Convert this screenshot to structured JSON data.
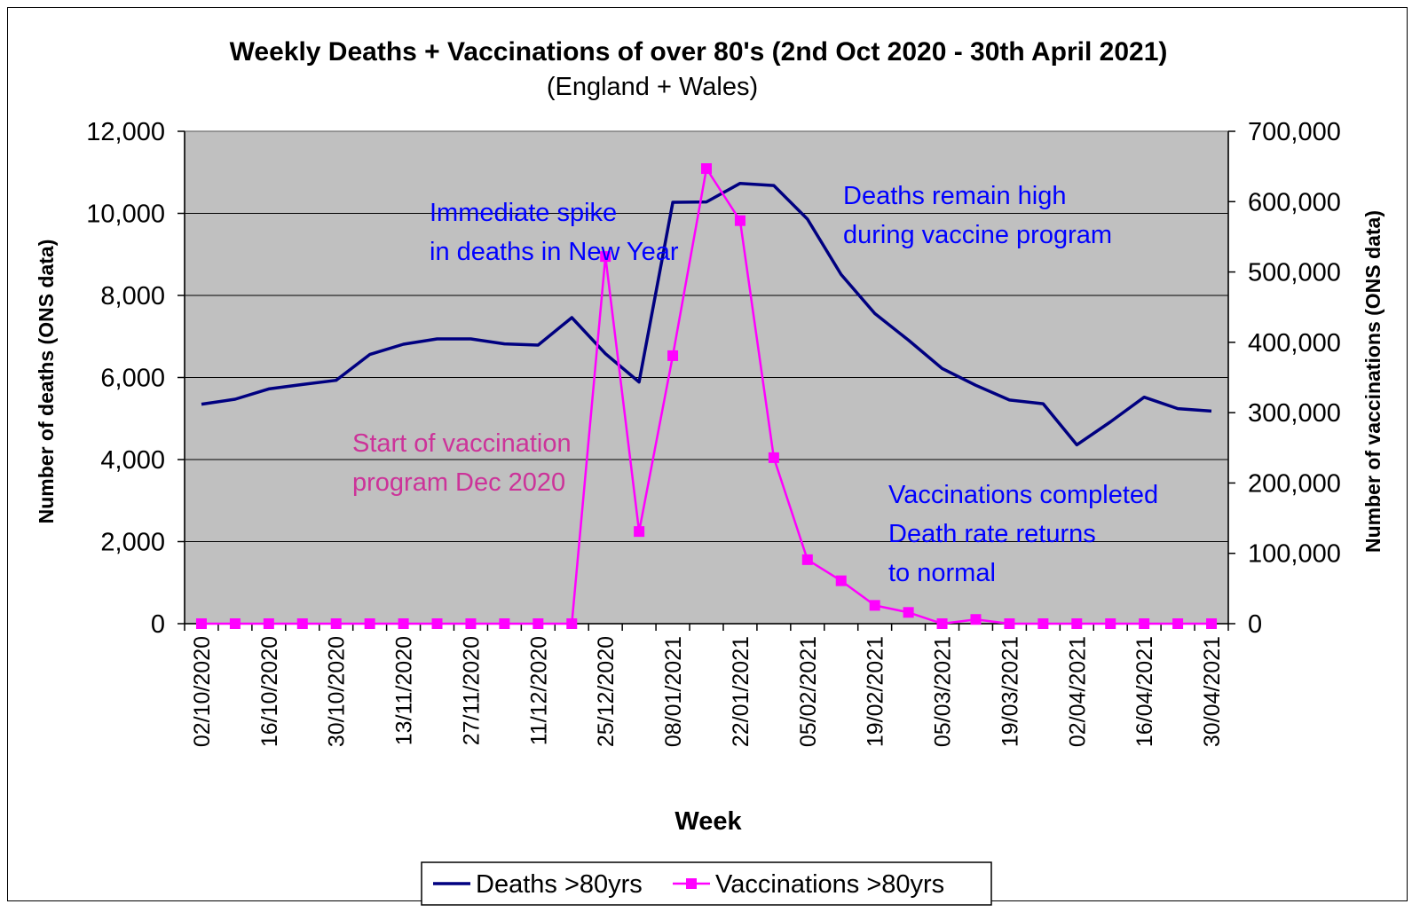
{
  "chart_data": {
    "type": "line",
    "title": "Weekly Deaths + Vaccinations of over 80's (2nd Oct 2020 - 30th April 2021)",
    "subtitle": "(England + Wales)",
    "xlabel": "Week",
    "ylabel": "Number of deaths (ONS data)",
    "y2label": "Number of vaccinations (ONS data)",
    "x": [
      "02/10/2020",
      "09/10/2020",
      "16/10/2020",
      "23/10/2020",
      "30/10/2020",
      "06/11/2020",
      "13/11/2020",
      "20/11/2020",
      "27/11/2020",
      "04/12/2020",
      "11/12/2020",
      "18/12/2020",
      "25/12/2020",
      "01/01/2021",
      "08/01/2021",
      "15/01/2021",
      "22/01/2021",
      "29/01/2021",
      "05/02/2021",
      "12/02/2021",
      "19/02/2021",
      "26/02/2021",
      "05/03/2021",
      "12/03/2021",
      "19/03/2021",
      "26/03/2021",
      "02/04/2021",
      "09/04/2021",
      "16/04/2021",
      "23/04/2021",
      "30/04/2021"
    ],
    "x_tick_labels": [
      "02/10/2020",
      "16/10/2020",
      "30/10/2020",
      "13/11/2020",
      "27/11/2020",
      "11/12/2020",
      "25/12/2020",
      "08/01/2021",
      "22/01/2021",
      "05/02/2021",
      "19/02/2021",
      "05/03/2021",
      "19/03/2021",
      "02/04/2021",
      "16/04/2021",
      "30/04/2021"
    ],
    "ylim": [
      0,
      12000
    ],
    "y_ticks": [
      "0",
      "2,000",
      "4,000",
      "6,000",
      "8,000",
      "10,000",
      "12,000"
    ],
    "y2lim": [
      0,
      700000
    ],
    "y2_ticks": [
      "0",
      "100,000",
      "200,000",
      "300,000",
      "400,000",
      "500,000",
      "600,000",
      "700,000"
    ],
    "grid": true,
    "plot_background": "#c0c0c0",
    "legend_position": "bottom",
    "series": [
      {
        "name": "Deaths >80yrs",
        "axis": "left",
        "color": "#000080",
        "marker": "none",
        "values": [
          5350,
          5470,
          5720,
          5830,
          5930,
          6560,
          6810,
          6940,
          6940,
          6820,
          6790,
          7460,
          6580,
          5890,
          10270,
          10280,
          10730,
          10680,
          9860,
          8510,
          7560,
          6910,
          6220,
          5810,
          5450,
          5360,
          4360,
          4920,
          5520,
          5240,
          5180
        ]
      },
      {
        "name": "Vaccinations >80yrs",
        "axis": "right",
        "color": "#ff00ff",
        "marker": "square",
        "values": [
          0,
          0,
          0,
          0,
          0,
          0,
          0,
          0,
          0,
          0,
          0,
          0,
          522000,
          131000,
          381000,
          647000,
          573000,
          236000,
          91000,
          61000,
          26000,
          16000,
          0,
          6000,
          0,
          0,
          0,
          0,
          0,
          0,
          0
        ]
      }
    ],
    "annotations": [
      {
        "lines": [
          "Immediate spike",
          "in deaths in New Year"
        ],
        "color": "#0000ff"
      },
      {
        "lines": [
          "Deaths remain high",
          "during vaccine program"
        ],
        "color": "#0000ff"
      },
      {
        "lines": [
          "Start of vaccination",
          "program Dec 2020"
        ],
        "color": "#cc3399"
      },
      {
        "lines": [
          "Vaccinations completed",
          "Death rate returns",
          "to normal"
        ],
        "color": "#0000ff"
      }
    ]
  }
}
